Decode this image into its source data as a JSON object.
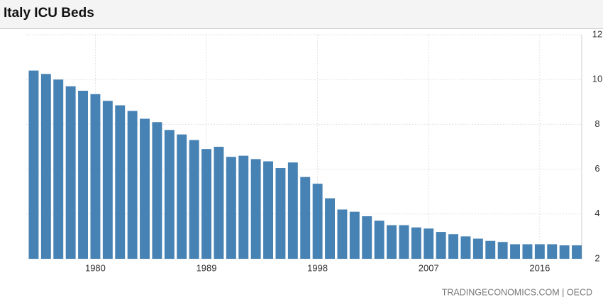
{
  "chart_data": {
    "type": "bar",
    "title": "Italy ICU Beds",
    "source": "TRADINGECONOMICS.COM | OECD",
    "x": [
      1975,
      1976,
      1977,
      1978,
      1979,
      1980,
      1981,
      1982,
      1983,
      1984,
      1985,
      1986,
      1987,
      1988,
      1989,
      1990,
      1991,
      1992,
      1993,
      1994,
      1995,
      1996,
      1997,
      1998,
      1999,
      2000,
      2001,
      2002,
      2003,
      2004,
      2005,
      2006,
      2007,
      2008,
      2009,
      2010,
      2011,
      2012,
      2013,
      2014,
      2015,
      2016,
      2017,
      2018,
      2019
    ],
    "values": [
      10.4,
      10.25,
      10.0,
      9.7,
      9.5,
      9.35,
      9.05,
      8.85,
      8.6,
      8.25,
      8.1,
      7.75,
      7.55,
      7.3,
      6.9,
      7.0,
      6.55,
      6.6,
      6.45,
      6.35,
      6.05,
      6.3,
      5.65,
      5.35,
      4.7,
      4.2,
      4.1,
      3.9,
      3.7,
      3.5,
      3.5,
      3.4,
      3.35,
      3.2,
      3.1,
      3.0,
      2.9,
      2.8,
      2.75,
      2.65,
      2.65,
      2.65,
      2.65,
      2.6,
      2.6
    ],
    "color": "#4682b4",
    "xlim": [
      1974.4,
      2019.4
    ],
    "xticks": [
      1980,
      1989,
      1998,
      2007,
      2016
    ],
    "ylim": [
      2,
      12
    ],
    "yticks": [
      2,
      4,
      6,
      8,
      10,
      12
    ],
    "grid": true
  }
}
